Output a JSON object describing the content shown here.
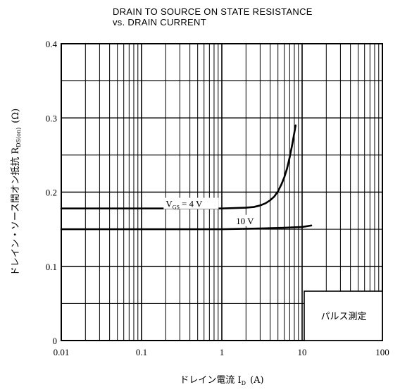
{
  "chart_data": {
    "type": "line",
    "title": "DRAIN TO SOURCE ON STATE RESISTANCE",
    "subtitle": "vs. DRAIN CURRENT",
    "xlabel": "ドレイン電流",
    "xlabel_symbol": "I",
    "xlabel_sub": "D",
    "xlabel_unit": "(A)",
    "ylabel": "ドレイン・ソース間オン抵抗",
    "ylabel_symbol": "R",
    "ylabel_sub": "DS(on)",
    "ylabel_unit": "(Ω)",
    "xscale": "log",
    "xlim": [
      0.01,
      100
    ],
    "ylim": [
      0,
      0.4
    ],
    "xticks": [
      {
        "value": 0.01,
        "label": "0.01"
      },
      {
        "value": 0.1,
        "label": "0.1"
      },
      {
        "value": 1,
        "label": "1"
      },
      {
        "value": 10,
        "label": "10"
      },
      {
        "value": 100,
        "label": "100"
      }
    ],
    "yticks": [
      {
        "value": 0,
        "label": "0"
      },
      {
        "value": 0.1,
        "label": "0.1"
      },
      {
        "value": 0.2,
        "label": "0.2"
      },
      {
        "value": 0.3,
        "label": "0.3"
      },
      {
        "value": 0.4,
        "label": "0.4"
      }
    ],
    "grid": true,
    "series": [
      {
        "name": "VGS = 4 V",
        "label_main": "V",
        "label_sub": "GS",
        "label_rest": "= 4 V",
        "label_at": [
          0.2,
          0.18
        ],
        "x": [
          0.01,
          0.1,
          1,
          2,
          2.5,
          3,
          3.5,
          4,
          4.5,
          5,
          5.5,
          6,
          6.5,
          7,
          7.5,
          8,
          8.3
        ],
        "y": [
          0.178,
          0.178,
          0.178,
          0.179,
          0.18,
          0.182,
          0.185,
          0.189,
          0.194,
          0.201,
          0.21,
          0.22,
          0.232,
          0.247,
          0.263,
          0.28,
          0.29
        ]
      },
      {
        "name": "10 V",
        "label_main": "10 V",
        "label_at": [
          1.5,
          0.157
        ],
        "x": [
          0.01,
          0.1,
          1,
          3,
          6,
          10,
          13
        ],
        "y": [
          0.15,
          0.15,
          0.15,
          0.151,
          0.152,
          0.153,
          0.155
        ]
      }
    ],
    "annotation": "パルス測定"
  }
}
